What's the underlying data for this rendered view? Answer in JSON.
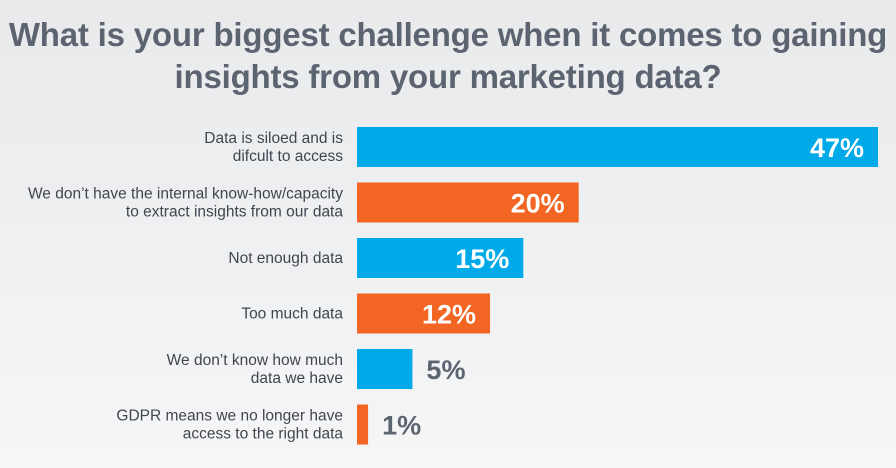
{
  "chart_data": {
    "type": "bar",
    "orientation": "horizontal",
    "title_lines": [
      "What is your biggest challenge when it comes to gaining",
      "insights from your marketing data?"
    ],
    "categories": [
      [
        "Data is siloed and is",
        "difcult to access"
      ],
      [
        "We don’t have the internal know-how/capacity",
        "to extract insights from our data"
      ],
      [
        "Not enough data"
      ],
      [
        "Too much data"
      ],
      [
        "We don’t know how much",
        "data we have"
      ],
      [
        "GDPR means we no longer have",
        "access to the right data"
      ]
    ],
    "values": [
      47,
      20,
      15,
      12,
      5,
      1
    ],
    "value_labels": [
      "47%",
      "20%",
      "15%",
      "12%",
      "5%",
      "1%"
    ],
    "colors": [
      "#00a9e8",
      "#f26522",
      "#00a9e8",
      "#f26522",
      "#00a9e8",
      "#f26522"
    ],
    "xlim": [
      0,
      47
    ],
    "grid": false,
    "legend": "none"
  }
}
